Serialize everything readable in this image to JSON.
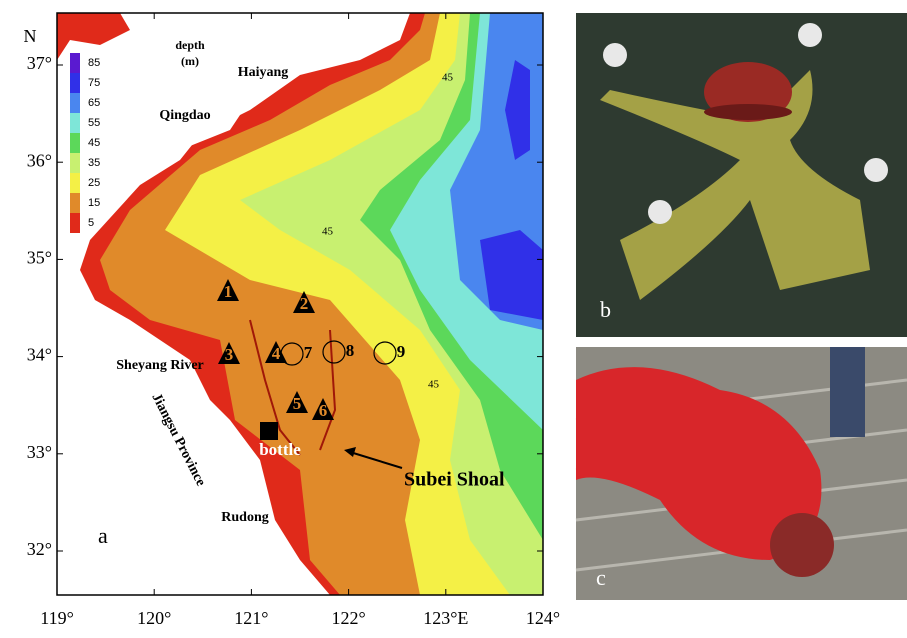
{
  "map": {
    "lon_ticks": [
      {
        "value": 119,
        "label": "119°"
      },
      {
        "value": 120,
        "label": "120°"
      },
      {
        "value": 121,
        "label": "121°"
      },
      {
        "value": 122,
        "label": "122°"
      },
      {
        "value": 123,
        "label": "123°E"
      },
      {
        "value": 124,
        "label": "124°"
      }
    ],
    "lat_label": "N",
    "lat_ticks": [
      {
        "value": 37,
        "label": "37°"
      },
      {
        "value": 36,
        "label": "36°"
      },
      {
        "value": 35,
        "label": "35°"
      },
      {
        "value": 34,
        "label": "34°"
      },
      {
        "value": 33,
        "label": "33°"
      },
      {
        "value": 32,
        "label": "32°"
      }
    ],
    "legend": {
      "title": "depth",
      "unit": "(m)",
      "levels": [
        {
          "value": 85,
          "color": "#5a1ad0"
        },
        {
          "value": 75,
          "color": "#3030e8"
        },
        {
          "value": 65,
          "color": "#4a86ef"
        },
        {
          "value": 55,
          "color": "#7ee6d8"
        },
        {
          "value": 45,
          "color": "#5cd85a"
        },
        {
          "value": 35,
          "color": "#c8f070"
        },
        {
          "value": 25,
          "color": "#f4f046"
        },
        {
          "value": 15,
          "color": "#e08a2a"
        },
        {
          "value": 5,
          "color": "#e02a1a"
        }
      ]
    },
    "places": {
      "haiyang": "Haiyang",
      "qingdao": "Qingdao",
      "sheyang": "Sheyang River",
      "jiangsu": "Jiangsu Province",
      "rudong": "Rudong"
    },
    "contour_labels": [
      "45",
      "45",
      "45"
    ],
    "stations": [
      "1",
      "2",
      "3",
      "4",
      "5",
      "6",
      "7",
      "8",
      "9"
    ],
    "bottle": "bottle",
    "shoal": "Subei Shoal",
    "panel": "a"
  },
  "photos": [
    {
      "panel": "b"
    },
    {
      "panel": "c"
    }
  ]
}
